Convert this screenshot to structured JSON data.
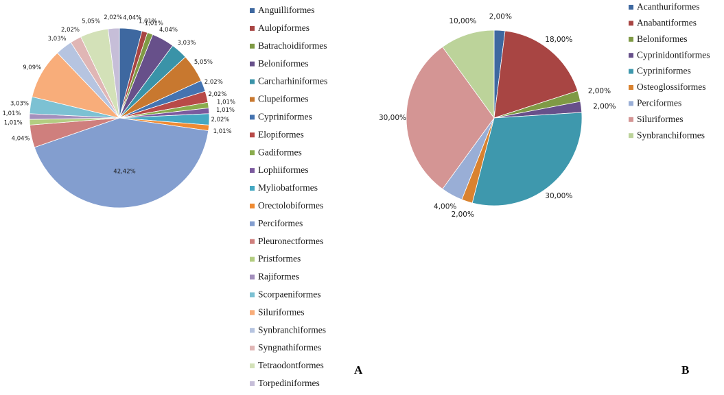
{
  "chart_data": [
    {
      "type": "pie",
      "panel_label": "A",
      "slices": [
        {
          "name": "Anguilliformes",
          "value": 4.04,
          "label": "4,04%",
          "color": "#3e68a0"
        },
        {
          "name": "Aulopiformes",
          "value": 1.01,
          "label": "1,01%",
          "color": "#a84543"
        },
        {
          "name": "Batrachoidiformes",
          "value": 1.01,
          "label": "1,01%",
          "color": "#7f9a45"
        },
        {
          "name": "Beloniformes",
          "value": 4.04,
          "label": "4,04%",
          "color": "#67508a"
        },
        {
          "name": "Carcharhiniformes",
          "value": 3.03,
          "label": "3,03%",
          "color": "#3a93a8"
        },
        {
          "name": "Clupeiformes",
          "value": 5.05,
          "label": "5,05%",
          "color": "#c8782f"
        },
        {
          "name": "Cypriniformes",
          "value": 2.02,
          "label": "2,02%",
          "color": "#4473b0"
        },
        {
          "name": "Elopiformes",
          "value": 2.02,
          "label": "2,02%",
          "color": "#b84a48"
        },
        {
          "name": "Gadiformes",
          "value": 1.01,
          "label": "1,01%",
          "color": "#8aac4d"
        },
        {
          "name": "Lophiiformes",
          "value": 1.01,
          "label": "1,01%",
          "color": "#7b5a9e"
        },
        {
          "name": "Myliobatformes",
          "value": 2.02,
          "label": "2,02%",
          "color": "#45a8c2"
        },
        {
          "name": "Orectolobiformes",
          "value": 1.01,
          "label": "1,01%",
          "color": "#ef8b33"
        },
        {
          "name": "Perciformes",
          "value": 42.42,
          "label": "42,42%",
          "color": "#839ecf"
        },
        {
          "name": "Pleuronectformes",
          "value": 4.04,
          "label": "4,04%",
          "color": "#cf7f7d"
        },
        {
          "name": "Pristformes",
          "value": 1.01,
          "label": "1,01%",
          "color": "#b3cd81"
        },
        {
          "name": "Rajiformes",
          "value": 1.01,
          "label": "1,01%",
          "color": "#a38fbc"
        },
        {
          "name": "Scorpaeniformes",
          "value": 3.03,
          "label": "3,03%",
          "color": "#7cc1d3"
        },
        {
          "name": "Siluriformes",
          "value": 9.09,
          "label": "9,09%",
          "color": "#f8ad7a"
        },
        {
          "name": "Synbranchiformes",
          "value": 3.03,
          "label": "3,03%",
          "color": "#b6c4e0"
        },
        {
          "name": "Syngnathiformes",
          "value": 2.02,
          "label": "2,02%",
          "color": "#e0b6b5"
        },
        {
          "name": "Tetraodontformes",
          "value": 5.05,
          "label": "5,05%",
          "color": "#d3e1b8"
        },
        {
          "name": "Torpediniformes",
          "value": 2.02,
          "label": "2,02%",
          "color": "#c6bed8"
        }
      ]
    },
    {
      "type": "pie",
      "panel_label": "B",
      "slices": [
        {
          "name": "Acanthuriformes",
          "value": 2.0,
          "label": "2,00%",
          "color": "#3e68a0"
        },
        {
          "name": "Anabantiformes",
          "value": 18.0,
          "label": "18,00%",
          "color": "#a84543"
        },
        {
          "name": "Beloniformes",
          "value": 2.0,
          "label": "2,00%",
          "color": "#7f9a45"
        },
        {
          "name": "Cyprinidontiformes",
          "value": 2.0,
          "label": "2,00%",
          "color": "#67508a"
        },
        {
          "name": "Cypriniformes",
          "value": 30.0,
          "label": "30,00%",
          "color": "#3e98ad"
        },
        {
          "name": "Osteoglossiformes",
          "value": 2.0,
          "label": "2,00%",
          "color": "#d9822f"
        },
        {
          "name": "Perciformes",
          "value": 4.0,
          "label": "4,00%",
          "color": "#99aed6"
        },
        {
          "name": "Siluriformes",
          "value": 30.0,
          "label": "30,00%",
          "color": "#d49594"
        },
        {
          "name": "Synbranchiformes",
          "value": 10.0,
          "label": "10,00%",
          "color": "#bcd39a"
        }
      ]
    }
  ]
}
